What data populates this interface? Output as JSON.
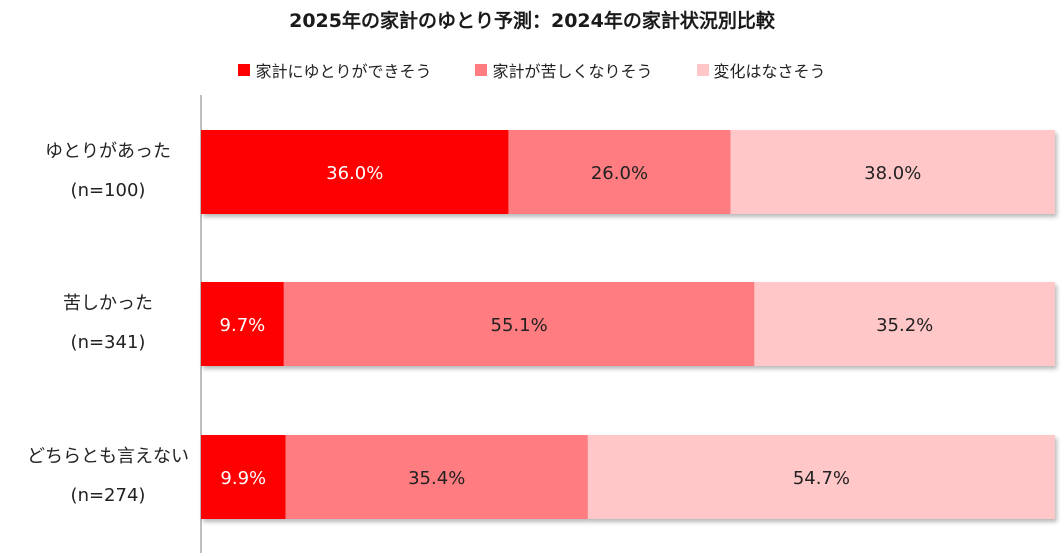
{
  "chart_data": {
    "type": "bar",
    "orientation": "horizontal",
    "stacked": true,
    "percent": true,
    "title": "2025年の家計のゆとり予測：2024年の家計状況別比較",
    "legend_position": "top",
    "categories": [
      {
        "label": "ゆとりがあった",
        "n": "(n=100)"
      },
      {
        "label": "苦しかった",
        "n": "(n=341)"
      },
      {
        "label": "どちらとも言えない",
        "n": "(n=274)"
      }
    ],
    "series": [
      {
        "name": "家計にゆとりができそう",
        "color": "#ff0000",
        "text_color": "#ffffff",
        "values": [
          36.0,
          9.7,
          9.9
        ],
        "labels": [
          "36.0%",
          "9.7%",
          "9.9%"
        ]
      },
      {
        "name": "家計が苦しくなりそう",
        "color": "#ff7c80",
        "text_color": "#222222",
        "values": [
          26.0,
          55.1,
          35.4
        ],
        "labels": [
          "26.0%",
          "55.1%",
          "35.4%"
        ]
      },
      {
        "name": "変化はなさそう",
        "color": "#ffc7c8",
        "text_color": "#222222",
        "values": [
          38.0,
          35.2,
          54.7
        ],
        "labels": [
          "38.0%",
          "35.2%",
          "54.7%"
        ]
      }
    ],
    "xlim": [
      0,
      100
    ],
    "grid": false
  }
}
